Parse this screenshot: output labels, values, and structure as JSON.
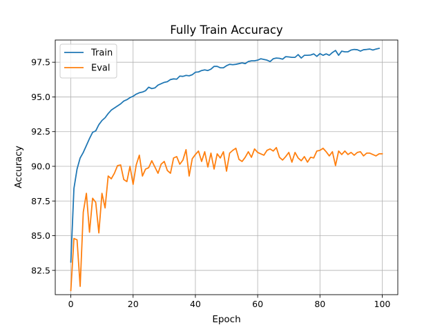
{
  "chart_data": {
    "type": "line",
    "title": "Fully Train Accuracy",
    "xlabel": "Epoch",
    "ylabel": "Accuracy",
    "xlim": [
      -5,
      105
    ],
    "ylim": [
      80.75,
      99.1
    ],
    "xticks": [
      0,
      20,
      40,
      60,
      80,
      100
    ],
    "xtick_labels": [
      "0",
      "20",
      "40",
      "60",
      "80",
      "100"
    ],
    "yticks": [
      82.5,
      85.0,
      87.5,
      90.0,
      92.5,
      95.0,
      97.5
    ],
    "ytick_labels": [
      "82.5",
      "85.0",
      "87.5",
      "90.0",
      "92.5",
      "95.0",
      "97.5"
    ],
    "grid": true,
    "legend_position": "top-left",
    "series": [
      {
        "name": "Train",
        "color": "#1f77b4",
        "x": [
          0,
          1,
          2,
          3,
          4,
          5,
          6,
          7,
          8,
          9,
          10,
          11,
          12,
          13,
          14,
          15,
          16,
          17,
          18,
          19,
          20,
          21,
          22,
          23,
          24,
          25,
          26,
          27,
          28,
          29,
          30,
          31,
          32,
          33,
          34,
          35,
          36,
          37,
          38,
          39,
          40,
          41,
          42,
          43,
          44,
          45,
          46,
          47,
          48,
          49,
          50,
          51,
          52,
          53,
          54,
          55,
          56,
          57,
          58,
          59,
          60,
          61,
          62,
          63,
          64,
          65,
          66,
          67,
          68,
          69,
          70,
          71,
          72,
          73,
          74,
          75,
          76,
          77,
          78,
          79,
          80,
          81,
          82,
          83,
          84,
          85,
          86,
          87,
          88,
          89,
          90,
          91,
          92,
          93,
          94,
          95,
          96,
          97,
          98,
          99
        ],
        "values": [
          83.1,
          88.4,
          89.8,
          90.6,
          91.0,
          91.5,
          92.0,
          92.45,
          92.55,
          93.0,
          93.3,
          93.5,
          93.8,
          94.05,
          94.2,
          94.35,
          94.5,
          94.7,
          94.8,
          94.95,
          95.05,
          95.2,
          95.3,
          95.35,
          95.45,
          95.7,
          95.6,
          95.65,
          95.85,
          95.95,
          96.05,
          96.1,
          96.25,
          96.3,
          96.28,
          96.5,
          96.48,
          96.55,
          96.52,
          96.6,
          96.78,
          96.8,
          96.9,
          96.95,
          96.9,
          97.0,
          97.2,
          97.2,
          97.1,
          97.1,
          97.25,
          97.35,
          97.32,
          97.35,
          97.4,
          97.45,
          97.4,
          97.55,
          97.6,
          97.6,
          97.65,
          97.75,
          97.7,
          97.65,
          97.55,
          97.75,
          97.8,
          97.78,
          97.72,
          97.9,
          97.88,
          97.85,
          97.85,
          98.05,
          97.8,
          98.0,
          98.0,
          98.02,
          98.1,
          97.92,
          98.12,
          98.0,
          98.1,
          98.0,
          98.2,
          98.35,
          98.0,
          98.3,
          98.25,
          98.25,
          98.38,
          98.42,
          98.4,
          98.3,
          98.4,
          98.42,
          98.45,
          98.38,
          98.45,
          98.5
        ]
      },
      {
        "name": "Eval",
        "color": "#ff7f0e",
        "x": [
          0,
          1,
          2,
          3,
          4,
          5,
          6,
          7,
          8,
          9,
          10,
          11,
          12,
          13,
          14,
          15,
          16,
          17,
          18,
          19,
          20,
          21,
          22,
          23,
          24,
          25,
          26,
          27,
          28,
          29,
          30,
          31,
          32,
          33,
          34,
          35,
          36,
          37,
          38,
          39,
          40,
          41,
          42,
          43,
          44,
          45,
          46,
          47,
          48,
          49,
          50,
          51,
          52,
          53,
          54,
          55,
          56,
          57,
          58,
          59,
          60,
          61,
          62,
          63,
          64,
          65,
          66,
          67,
          68,
          69,
          70,
          71,
          72,
          73,
          74,
          75,
          76,
          77,
          78,
          79,
          80,
          81,
          82,
          83,
          84,
          85,
          86,
          87,
          88,
          89,
          90,
          91,
          92,
          93,
          94,
          95,
          96,
          97,
          98,
          99,
          100
        ],
        "values": [
          81.05,
          84.8,
          84.7,
          81.35,
          86.7,
          88.05,
          85.25,
          87.7,
          87.4,
          85.2,
          88.05,
          87.0,
          89.3,
          89.1,
          89.5,
          90.05,
          90.1,
          89.05,
          88.9,
          90.0,
          88.7,
          90.1,
          90.8,
          89.3,
          89.8,
          89.9,
          90.4,
          89.95,
          89.5,
          90.15,
          90.35,
          89.7,
          89.5,
          90.6,
          90.7,
          90.15,
          90.45,
          91.2,
          89.3,
          90.55,
          90.85,
          91.1,
          90.35,
          91.05,
          89.95,
          90.95,
          89.8,
          90.9,
          90.6,
          91.05,
          89.65,
          90.95,
          91.15,
          91.3,
          90.5,
          90.35,
          90.65,
          91.05,
          90.65,
          91.25,
          91.0,
          90.9,
          90.8,
          91.15,
          91.25,
          91.1,
          91.35,
          90.65,
          90.45,
          90.7,
          91.0,
          90.3,
          91.0,
          90.6,
          90.4,
          90.7,
          90.3,
          90.65,
          90.6,
          91.1,
          91.15,
          91.3,
          91.05,
          90.75,
          91.05,
          90.05,
          91.1,
          90.85,
          91.1,
          90.85,
          91.0,
          90.8,
          91.0,
          91.05,
          90.75,
          90.95,
          90.95,
          90.85,
          90.75,
          90.9,
          90.9
        ]
      }
    ]
  }
}
